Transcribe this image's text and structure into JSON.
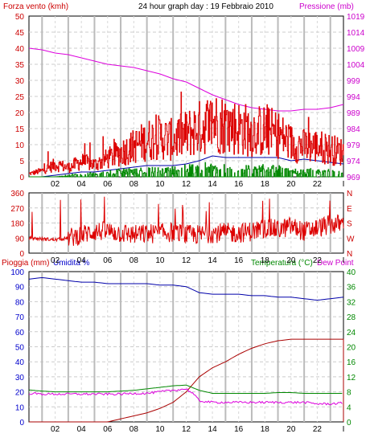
{
  "chart_data": [
    {
      "type": "line",
      "title": "24 hour graph day : 19 Febbraio 2010",
      "left_axis_label": "Forza vento (kmh)",
      "right_axis_label": "Pressione (mb)",
      "x_ticks": [
        "02",
        "04",
        "06",
        "08",
        "10",
        "12",
        "14",
        "16",
        "18",
        "20",
        "22",
        "I"
      ],
      "left_ticks": [
        "0",
        "5",
        "10",
        "15",
        "20",
        "25",
        "30",
        "35",
        "40",
        "45",
        "50"
      ],
      "right_ticks": [
        "969",
        "974",
        "979",
        "984",
        "989",
        "994",
        "999",
        "1004",
        "1009",
        "1014",
        "1019"
      ],
      "ylim": [
        0,
        50
      ],
      "y2lim": [
        969,
        1019
      ],
      "colors": {
        "wind": "#dd0000",
        "wind_avg": "#0000aa",
        "wind_low": "#008800",
        "pressure": "#dd00dd",
        "left_axis": "#cc0000",
        "right_axis": "#cc00cc"
      },
      "series": [
        {
          "key": "pressure",
          "color": "#dd00dd",
          "hours": [
            0,
            1,
            2,
            3,
            4,
            5,
            6,
            7,
            8,
            9,
            10,
            11,
            12,
            13,
            14,
            15,
            16,
            17,
            18,
            19,
            20,
            21,
            22,
            23,
            24
          ],
          "values": [
            1009,
            1008.5,
            1007.5,
            1007,
            1006,
            1005,
            1004,
            1003.5,
            1003,
            1002,
            1001,
            999.5,
            998.5,
            996.5,
            994.5,
            993,
            991.5,
            990.5,
            990,
            989.5,
            989.5,
            990,
            990,
            990.5,
            991.5
          ]
        },
        {
          "key": "wind_avg",
          "color": "#0000aa",
          "hours": [
            0,
            1,
            2,
            3,
            4,
            5,
            6,
            7,
            8,
            9,
            10,
            11,
            12,
            13,
            14,
            15,
            16,
            17,
            18,
            19,
            20,
            21,
            22,
            23,
            24
          ],
          "values": [
            0,
            0,
            0.5,
            1,
            1.5,
            1.5,
            2,
            2.5,
            3,
            3.5,
            3.5,
            3.5,
            4,
            5,
            6.5,
            6,
            6,
            6,
            6,
            6,
            5,
            5.5,
            5,
            4.5,
            4
          ]
        },
        {
          "key": "wind",
          "color": "#dd0000",
          "hours": [
            0,
            1,
            2,
            3,
            4,
            5,
            6,
            7,
            8,
            9,
            10,
            11,
            12,
            13,
            14,
            15,
            16,
            17,
            18,
            19,
            20,
            21,
            22,
            23,
            24
          ],
          "values": [
            1,
            2,
            4,
            3,
            5,
            4,
            6,
            8,
            10,
            12,
            13,
            12,
            14,
            16,
            18,
            17,
            16,
            15,
            15,
            14,
            11,
            10,
            10,
            9,
            8
          ]
        },
        {
          "key": "wind_low",
          "color": "#008800",
          "hours": [
            0,
            2,
            3,
            4,
            5,
            6,
            7,
            8,
            9,
            10,
            11,
            12,
            13,
            14,
            15,
            16,
            17,
            18,
            19,
            20,
            21,
            22,
            23,
            24
          ],
          "values": [
            0,
            0,
            0.5,
            1,
            1,
            1.5,
            2,
            2,
            2.5,
            2.5,
            2.5,
            3,
            3,
            4,
            3,
            3,
            3,
            3,
            3,
            2,
            2,
            2,
            2,
            2
          ]
        }
      ]
    },
    {
      "type": "line",
      "left_ticks": [
        "0",
        "90",
        "180",
        "270",
        "360"
      ],
      "right_ticks": [
        "N",
        "W",
        "S",
        "E",
        "N"
      ],
      "ylim": [
        0,
        360
      ],
      "x_ticks": [
        "02",
        "04",
        "06",
        "08",
        "10",
        "12",
        "14",
        "16",
        "18",
        "20",
        "22",
        "I"
      ],
      "colors": {
        "direction": "#dd0000",
        "left_axis": "#cc0000",
        "right_axis": "#cc0000"
      },
      "series": [
        {
          "key": "direction",
          "color": "#dd0000",
          "hours": [
            0,
            1,
            2,
            3,
            4,
            5,
            6,
            7,
            8,
            9,
            10,
            11,
            12,
            13,
            14,
            15,
            16,
            17,
            18,
            19,
            20,
            21,
            22,
            23,
            24
          ],
          "values": [
            90,
            85,
            80,
            90,
            110,
            130,
            130,
            120,
            110,
            115,
            120,
            125,
            110,
            110,
            120,
            120,
            120,
            130,
            150,
            140,
            160,
            130,
            150,
            170,
            175
          ]
        }
      ]
    },
    {
      "type": "line",
      "left_axis_label_1": "Pioggia (mm)",
      "left_axis_label_2": "Umidita %",
      "right_axis_label_1": "Temperatura (°C)",
      "right_axis_label_2": "Dew Point",
      "left_ticks": [
        "0",
        "10",
        "20",
        "30",
        "40",
        "50",
        "60",
        "70",
        "80",
        "90",
        "100"
      ],
      "right_ticks": [
        "0",
        "4",
        "8",
        "12",
        "16",
        "20",
        "24",
        "28",
        "32",
        "36",
        "40"
      ],
      "ylim": [
        0,
        100
      ],
      "y2lim": [
        0,
        40
      ],
      "x_ticks": [
        "02",
        "04",
        "06",
        "08",
        "10",
        "12",
        "14",
        "16",
        "18",
        "20",
        "22",
        "I"
      ],
      "colors": {
        "humidity": "#0000aa",
        "rain": "#aa0000",
        "temperature": "#008800",
        "dew": "#dd00dd",
        "left_axis_1": "#cc0000",
        "left_axis_2": "#0000cc",
        "right_axis_1": "#008800",
        "right_axis_2": "#cc00cc"
      },
      "series": [
        {
          "key": "humidity",
          "axis": "left",
          "color": "#0000aa",
          "hours": [
            0,
            1,
            2,
            3,
            4,
            5,
            6,
            7,
            8,
            9,
            10,
            11,
            12,
            12.5,
            13,
            14,
            15,
            16,
            17,
            18,
            19,
            20,
            21,
            22,
            23,
            24
          ],
          "values": [
            95,
            96,
            95,
            94,
            93,
            93,
            92,
            92,
            92,
            92,
            91,
            91,
            90,
            88,
            86,
            85,
            85,
            85,
            84,
            84,
            83,
            83,
            82,
            81,
            82,
            83
          ]
        },
        {
          "key": "rain",
          "axis": "left",
          "color": "#aa0000",
          "hours": [
            0,
            2,
            4,
            5,
            6,
            7,
            8,
            9,
            10,
            11,
            12,
            13,
            14,
            15,
            16,
            17,
            18,
            19,
            20,
            21,
            22,
            23,
            24,
            24
          ],
          "values": [
            0,
            0,
            0,
            0,
            0,
            2,
            4,
            6,
            9,
            13,
            20,
            30,
            36,
            40,
            45,
            49,
            52,
            54,
            55,
            55,
            55,
            55,
            55,
            0
          ]
        },
        {
          "key": "temperature",
          "axis": "right",
          "color": "#008800",
          "hours": [
            0,
            1,
            2,
            3,
            4,
            5,
            6,
            7,
            8,
            9,
            10,
            11,
            12,
            13,
            14,
            15,
            16,
            17,
            18,
            19,
            20,
            21,
            22,
            23,
            24
          ],
          "values": [
            8.5,
            8.2,
            8.0,
            8.0,
            8.0,
            8.0,
            8.0,
            8.2,
            8.4,
            8.8,
            9.2,
            9.6,
            9.8,
            8.4,
            7.6,
            7.6,
            7.6,
            7.6,
            7.6,
            7.8,
            7.8,
            7.6,
            7.6,
            7.6,
            7.6
          ]
        },
        {
          "key": "dew",
          "axis": "right",
          "color": "#dd00dd",
          "hours": [
            0,
            1,
            2,
            3,
            4,
            5,
            6,
            7,
            8,
            9,
            10,
            11,
            12,
            12.5,
            13,
            14,
            15,
            16,
            17,
            18,
            19,
            20,
            21,
            22,
            23,
            24
          ],
          "values": [
            7.6,
            7.4,
            7.4,
            7.4,
            7.4,
            7.4,
            7.4,
            7.4,
            7.6,
            7.6,
            8.0,
            8.4,
            8.8,
            7.6,
            5.6,
            5.2,
            5.2,
            5.2,
            5.2,
            5.2,
            5.2,
            5.2,
            5.2,
            4.8,
            4.8,
            5.0
          ]
        }
      ]
    }
  ]
}
